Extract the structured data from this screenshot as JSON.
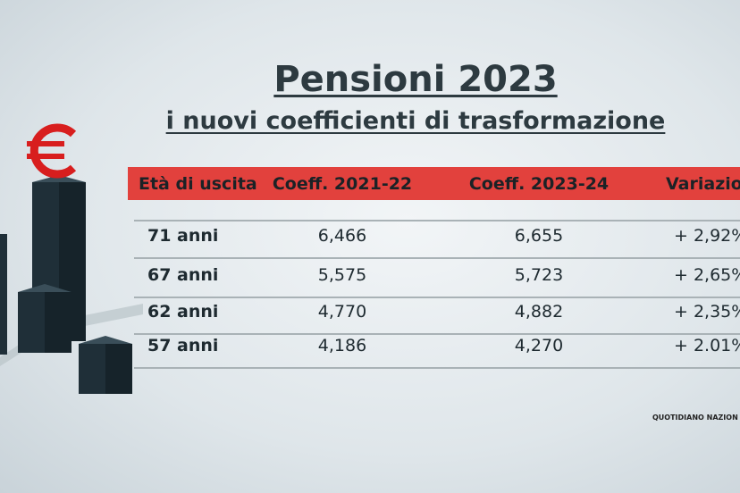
{
  "header": {
    "title": "Pensioni 2023",
    "subtitle": "i nuovi coefficienti di trasformazione"
  },
  "table": {
    "columns": [
      "Età di uscita",
      "Coeff. 2021-22",
      "Coeff. 2023-24",
      "Variazio"
    ],
    "rows": [
      [
        "71 anni",
        "6,466",
        "6,655",
        "+ 2,92%"
      ],
      [
        "67 anni",
        "5,575",
        "5,723",
        "+ 2,65%"
      ],
      [
        "62 anni",
        "4,770",
        "4,882",
        "+ 2,35%"
      ],
      [
        "57 anni",
        "4,186",
        "4,270",
        "+ 2.01%"
      ]
    ]
  },
  "footer": {
    "source": "QUOTIDIANO NAZION"
  }
}
